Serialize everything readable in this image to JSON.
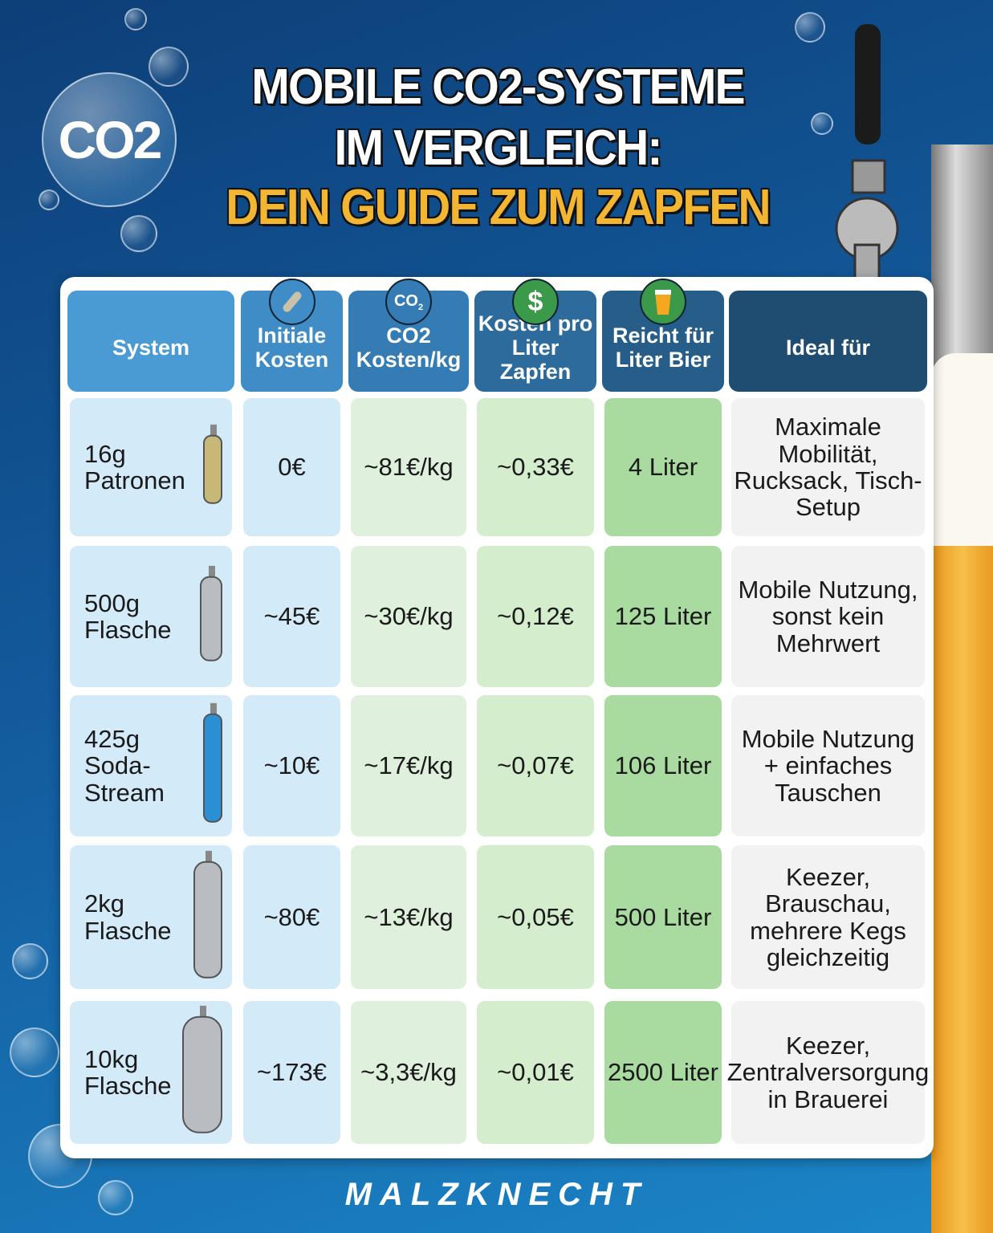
{
  "badge": "CO2",
  "title": {
    "line1": "MOBILE CO2-SYSTEME",
    "line2": "IM VERGLEICH:",
    "line3": "DEIN GUIDE ZUM ZAPFEN"
  },
  "headers": [
    "System",
    "Initiale Kosten",
    "CO2 Kosten/kg",
    "Kosten pro Liter Zapfen",
    "Reicht für Liter Bier",
    "Ideal für"
  ],
  "header_icons": [
    "cartridge-icon",
    "co2-icon",
    "dollar-icon",
    "beer-glass-icon"
  ],
  "rows": [
    {
      "system": "16g Patronen",
      "initial": "0€",
      "co2_per_kg": "~81€/kg",
      "per_liter": "~0,33€",
      "liters": "4 Liter",
      "ideal": "Maximale Mobilität, Rucksack, Tisch-Setup",
      "icon": "cartridge-icon"
    },
    {
      "system": "500g Flasche",
      "initial": "~45€",
      "co2_per_kg": "~30€/kg",
      "per_liter": "~0,12€",
      "liters": "125 Liter",
      "ideal": "Mobile Nutzung, sonst kein Mehrwert",
      "icon": "small-bottle-icon"
    },
    {
      "system": "425g Soda-Stream",
      "initial": "~10€",
      "co2_per_kg": "~17€/kg",
      "per_liter": "~0,07€",
      "liters": "106 Liter",
      "ideal": "Mobile Nutzung + einfaches Tauschen",
      "icon": "sodastream-cylinder-icon"
    },
    {
      "system": "2kg Flasche",
      "initial": "~80€",
      "co2_per_kg": "~13€/kg",
      "per_liter": "~0,05€",
      "liters": "500 Liter",
      "ideal": "Keezer, Brauschau, mehrere Kegs gleichzeitig",
      "icon": "cylinder-icon"
    },
    {
      "system": "10kg Flasche",
      "initial": "~173€",
      "co2_per_kg": "~3,3€/kg",
      "per_liter": "~0,01€",
      "liters": "2500 Liter",
      "ideal": "Keezer, Zentralversorgung in Brauerei",
      "icon": "large-cylinder-icon"
    }
  ],
  "colors": {
    "header_light": "#3f8fcb",
    "header_dark": "#1f4d72",
    "col_system": "#d3eaf8",
    "col_co2": "#dff0dc",
    "col_per_liter": "#d3edcd",
    "col_liters": "#a9dba1",
    "col_ideal": "#f2f2f2",
    "accent_yellow": "#f2b632"
  },
  "footer": "MALZKNECHT"
}
